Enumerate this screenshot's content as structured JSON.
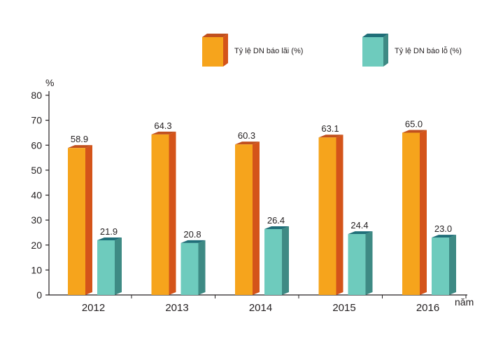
{
  "chart_data": {
    "type": "bar",
    "categories": [
      "2012",
      "2013",
      "2014",
      "2015",
      "2016"
    ],
    "series": [
      {
        "name": "Tỷ lệ DN báo lãi (%)",
        "values": [
          58.9,
          64.3,
          60.3,
          63.1,
          65.0
        ],
        "labels": [
          "58.9",
          "64.3",
          "60.3",
          "63.1",
          "65.0"
        ],
        "color": "#f6a41c",
        "side_color": "#d4541a",
        "top_color": "#c1501e"
      },
      {
        "name": "Tỷ lệ DN báo lỗ (%)",
        "values": [
          21.9,
          20.8,
          26.4,
          24.4,
          23.0
        ],
        "labels": [
          "21.9",
          "20.8",
          "26.4",
          "24.4",
          "23.0"
        ],
        "color": "#6ecbbd",
        "side_color": "#3e8a84",
        "top_color": "#1f6e78"
      }
    ],
    "ylabel": "%",
    "xlabel": "năm",
    "ylim": [
      0,
      80
    ],
    "yticks": [
      "0",
      "10",
      "20",
      "30",
      "40",
      "50",
      "60",
      "70",
      "80"
    ],
    "grid": false,
    "legend_position": "top-right",
    "style": "3d-bar"
  }
}
